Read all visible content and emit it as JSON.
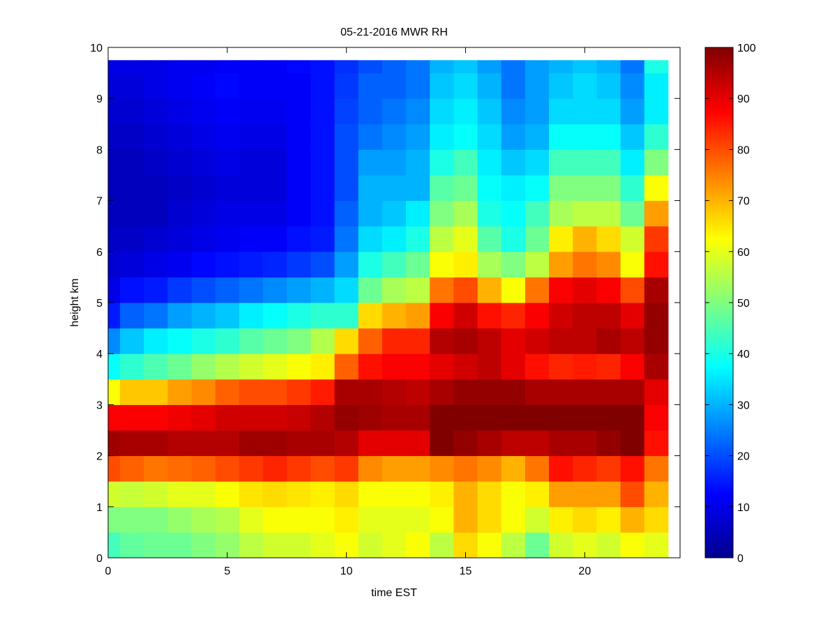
{
  "chart_data": {
    "type": "heatmap",
    "title": "05-21-2016 MWR RH",
    "xlabel": "time EST",
    "ylabel": "height km",
    "xlim": [
      0,
      24
    ],
    "ylim": [
      0,
      10
    ],
    "xticks": [
      "0",
      "5",
      "10",
      "15",
      "20"
    ],
    "yticks": [
      "0",
      "1",
      "2",
      "3",
      "4",
      "5",
      "6",
      "7",
      "8",
      "9",
      "10"
    ],
    "colorbar": {
      "colormap": "jet",
      "range": [
        0,
        100
      ],
      "ticks": [
        "0",
        "10",
        "20",
        "30",
        "40",
        "50",
        "60",
        "70",
        "80",
        "90",
        "100"
      ]
    },
    "time_centers": [
      0,
      1,
      2,
      3,
      4,
      5,
      6,
      7,
      8,
      9,
      10,
      11,
      12,
      13,
      14,
      15,
      16,
      17,
      18,
      19,
      20,
      21,
      22,
      23
    ],
    "height_edges": [
      0,
      0.5,
      1,
      1.5,
      2,
      2.5,
      3,
      3.5,
      4,
      4.5,
      5,
      5.5,
      6,
      6.5,
      7,
      7.5,
      8,
      8.5,
      9,
      9.5,
      9.75
    ],
    "values_by_time": [
      [
        44,
        50,
        58,
        80,
        97,
        88,
        62,
        38,
        26,
        15,
        10,
        8,
        7,
        6,
        6,
        6,
        7,
        8,
        9,
        10
      ],
      [
        47,
        50,
        57,
        78,
        96,
        88,
        68,
        42,
        32,
        22,
        14,
        9,
        7,
        6,
        6,
        6,
        7,
        8,
        9,
        10
      ],
      [
        48,
        50,
        58,
        76,
        96,
        88,
        68,
        45,
        36,
        24,
        15,
        10,
        8,
        6,
        6,
        7,
        8,
        9,
        10,
        10
      ],
      [
        48,
        52,
        60,
        77,
        95,
        89,
        72,
        48,
        38,
        28,
        18,
        11,
        9,
        8,
        7,
        8,
        9,
        10,
        11,
        11
      ],
      [
        50,
        54,
        60,
        78,
        95,
        90,
        74,
        52,
        40,
        30,
        20,
        13,
        10,
        9,
        8,
        9,
        10,
        11,
        12,
        11
      ],
      [
        52,
        55,
        62,
        80,
        95,
        92,
        78,
        55,
        42,
        32,
        22,
        14,
        11,
        10,
        9,
        10,
        11,
        12,
        13,
        12
      ],
      [
        56,
        60,
        65,
        82,
        97,
        92,
        80,
        58,
        46,
        36,
        24,
        15,
        12,
        10,
        9,
        9,
        10,
        11,
        12,
        12
      ],
      [
        58,
        62,
        66,
        84,
        97,
        92,
        80,
        60,
        48,
        38,
        26,
        16,
        12,
        10,
        9,
        9,
        10,
        11,
        12,
        12
      ],
      [
        58,
        62,
        65,
        82,
        96,
        93,
        82,
        62,
        50,
        40,
        28,
        18,
        14,
        12,
        12,
        12,
        12,
        12,
        12,
        13
      ],
      [
        60,
        62,
        64,
        80,
        96,
        95,
        85,
        64,
        55,
        42,
        30,
        20,
        15,
        14,
        14,
        14,
        14,
        14,
        14,
        14
      ],
      [
        62,
        64,
        66,
        82,
        95,
        98,
        96,
        78,
        66,
        42,
        34,
        28,
        24,
        22,
        20,
        20,
        20,
        19,
        18,
        17
      ],
      [
        58,
        60,
        62,
        74,
        90,
        97,
        96,
        86,
        78,
        66,
        48,
        40,
        34,
        30,
        30,
        28,
        24,
        22,
        22,
        20
      ],
      [
        60,
        60,
        62,
        72,
        90,
        96,
        95,
        88,
        84,
        70,
        54,
        44,
        36,
        32,
        30,
        28,
        26,
        24,
        22,
        22
      ],
      [
        62,
        60,
        62,
        72,
        90,
        96,
        94,
        88,
        84,
        72,
        56,
        48,
        40,
        36,
        30,
        30,
        28,
        26,
        24,
        24
      ],
      [
        56,
        62,
        64,
        74,
        100,
        100,
        96,
        90,
        95,
        88,
        76,
        62,
        56,
        50,
        46,
        40,
        36,
        34,
        32,
        30
      ],
      [
        66,
        70,
        70,
        76,
        98,
        100,
        98,
        92,
        96,
        92,
        80,
        64,
        60,
        54,
        48,
        44,
        38,
        36,
        34,
        32
      ],
      [
        62,
        66,
        66,
        74,
        96,
        100,
        98,
        94,
        94,
        86,
        70,
        54,
        46,
        40,
        38,
        36,
        34,
        32,
        30,
        28
      ],
      [
        56,
        62,
        62,
        70,
        94,
        100,
        98,
        90,
        90,
        84,
        62,
        50,
        40,
        38,
        36,
        32,
        28,
        26,
        24,
        24
      ],
      [
        48,
        58,
        64,
        76,
        94,
        100,
        96,
        86,
        92,
        88,
        76,
        56,
        48,
        44,
        38,
        34,
        30,
        28,
        28,
        28
      ],
      [
        58,
        64,
        72,
        86,
        96,
        100,
        96,
        84,
        94,
        92,
        88,
        72,
        64,
        54,
        50,
        44,
        38,
        34,
        32,
        30
      ],
      [
        60,
        66,
        72,
        84,
        96,
        100,
        96,
        85,
        94,
        94,
        90,
        76,
        70,
        56,
        50,
        44,
        38,
        34,
        34,
        32
      ],
      [
        58,
        64,
        72,
        82,
        98,
        100,
        96,
        84,
        96,
        94,
        88,
        74,
        66,
        56,
        50,
        44,
        38,
        34,
        32,
        30
      ],
      [
        62,
        70,
        80,
        86,
        100,
        100,
        96,
        88,
        94,
        90,
        80,
        62,
        58,
        48,
        42,
        36,
        32,
        28,
        26,
        24
      ],
      [
        60,
        66,
        70,
        76,
        86,
        88,
        90,
        96,
        98,
        98,
        96,
        86,
        82,
        72,
        62,
        50,
        42,
        36,
        36,
        40
      ]
    ]
  }
}
